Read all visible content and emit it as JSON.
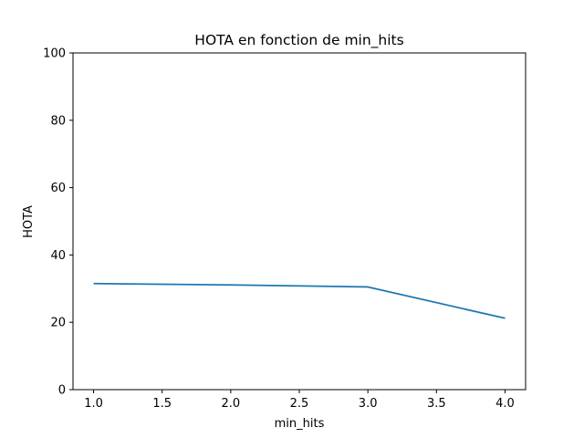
{
  "chart_data": {
    "type": "line",
    "title": "HOTA en fonction de min_hits",
    "xlabel": "min_hits",
    "ylabel": "HOTA",
    "x": [
      1.0,
      2.0,
      3.0,
      4.0
    ],
    "series": [
      {
        "values": [
          31.5,
          31.1,
          30.5,
          21.2
        ]
      }
    ],
    "xlim": [
      0.85,
      4.15
    ],
    "ylim": [
      0,
      100
    ],
    "xticks": [
      "1.0",
      "1.5",
      "2.0",
      "2.5",
      "3.0",
      "3.5",
      "4.0"
    ],
    "yticks": [
      "0",
      "20",
      "40",
      "60",
      "80",
      "100"
    ],
    "grid": false,
    "legend": "none",
    "line_color": "#1f77b4"
  }
}
